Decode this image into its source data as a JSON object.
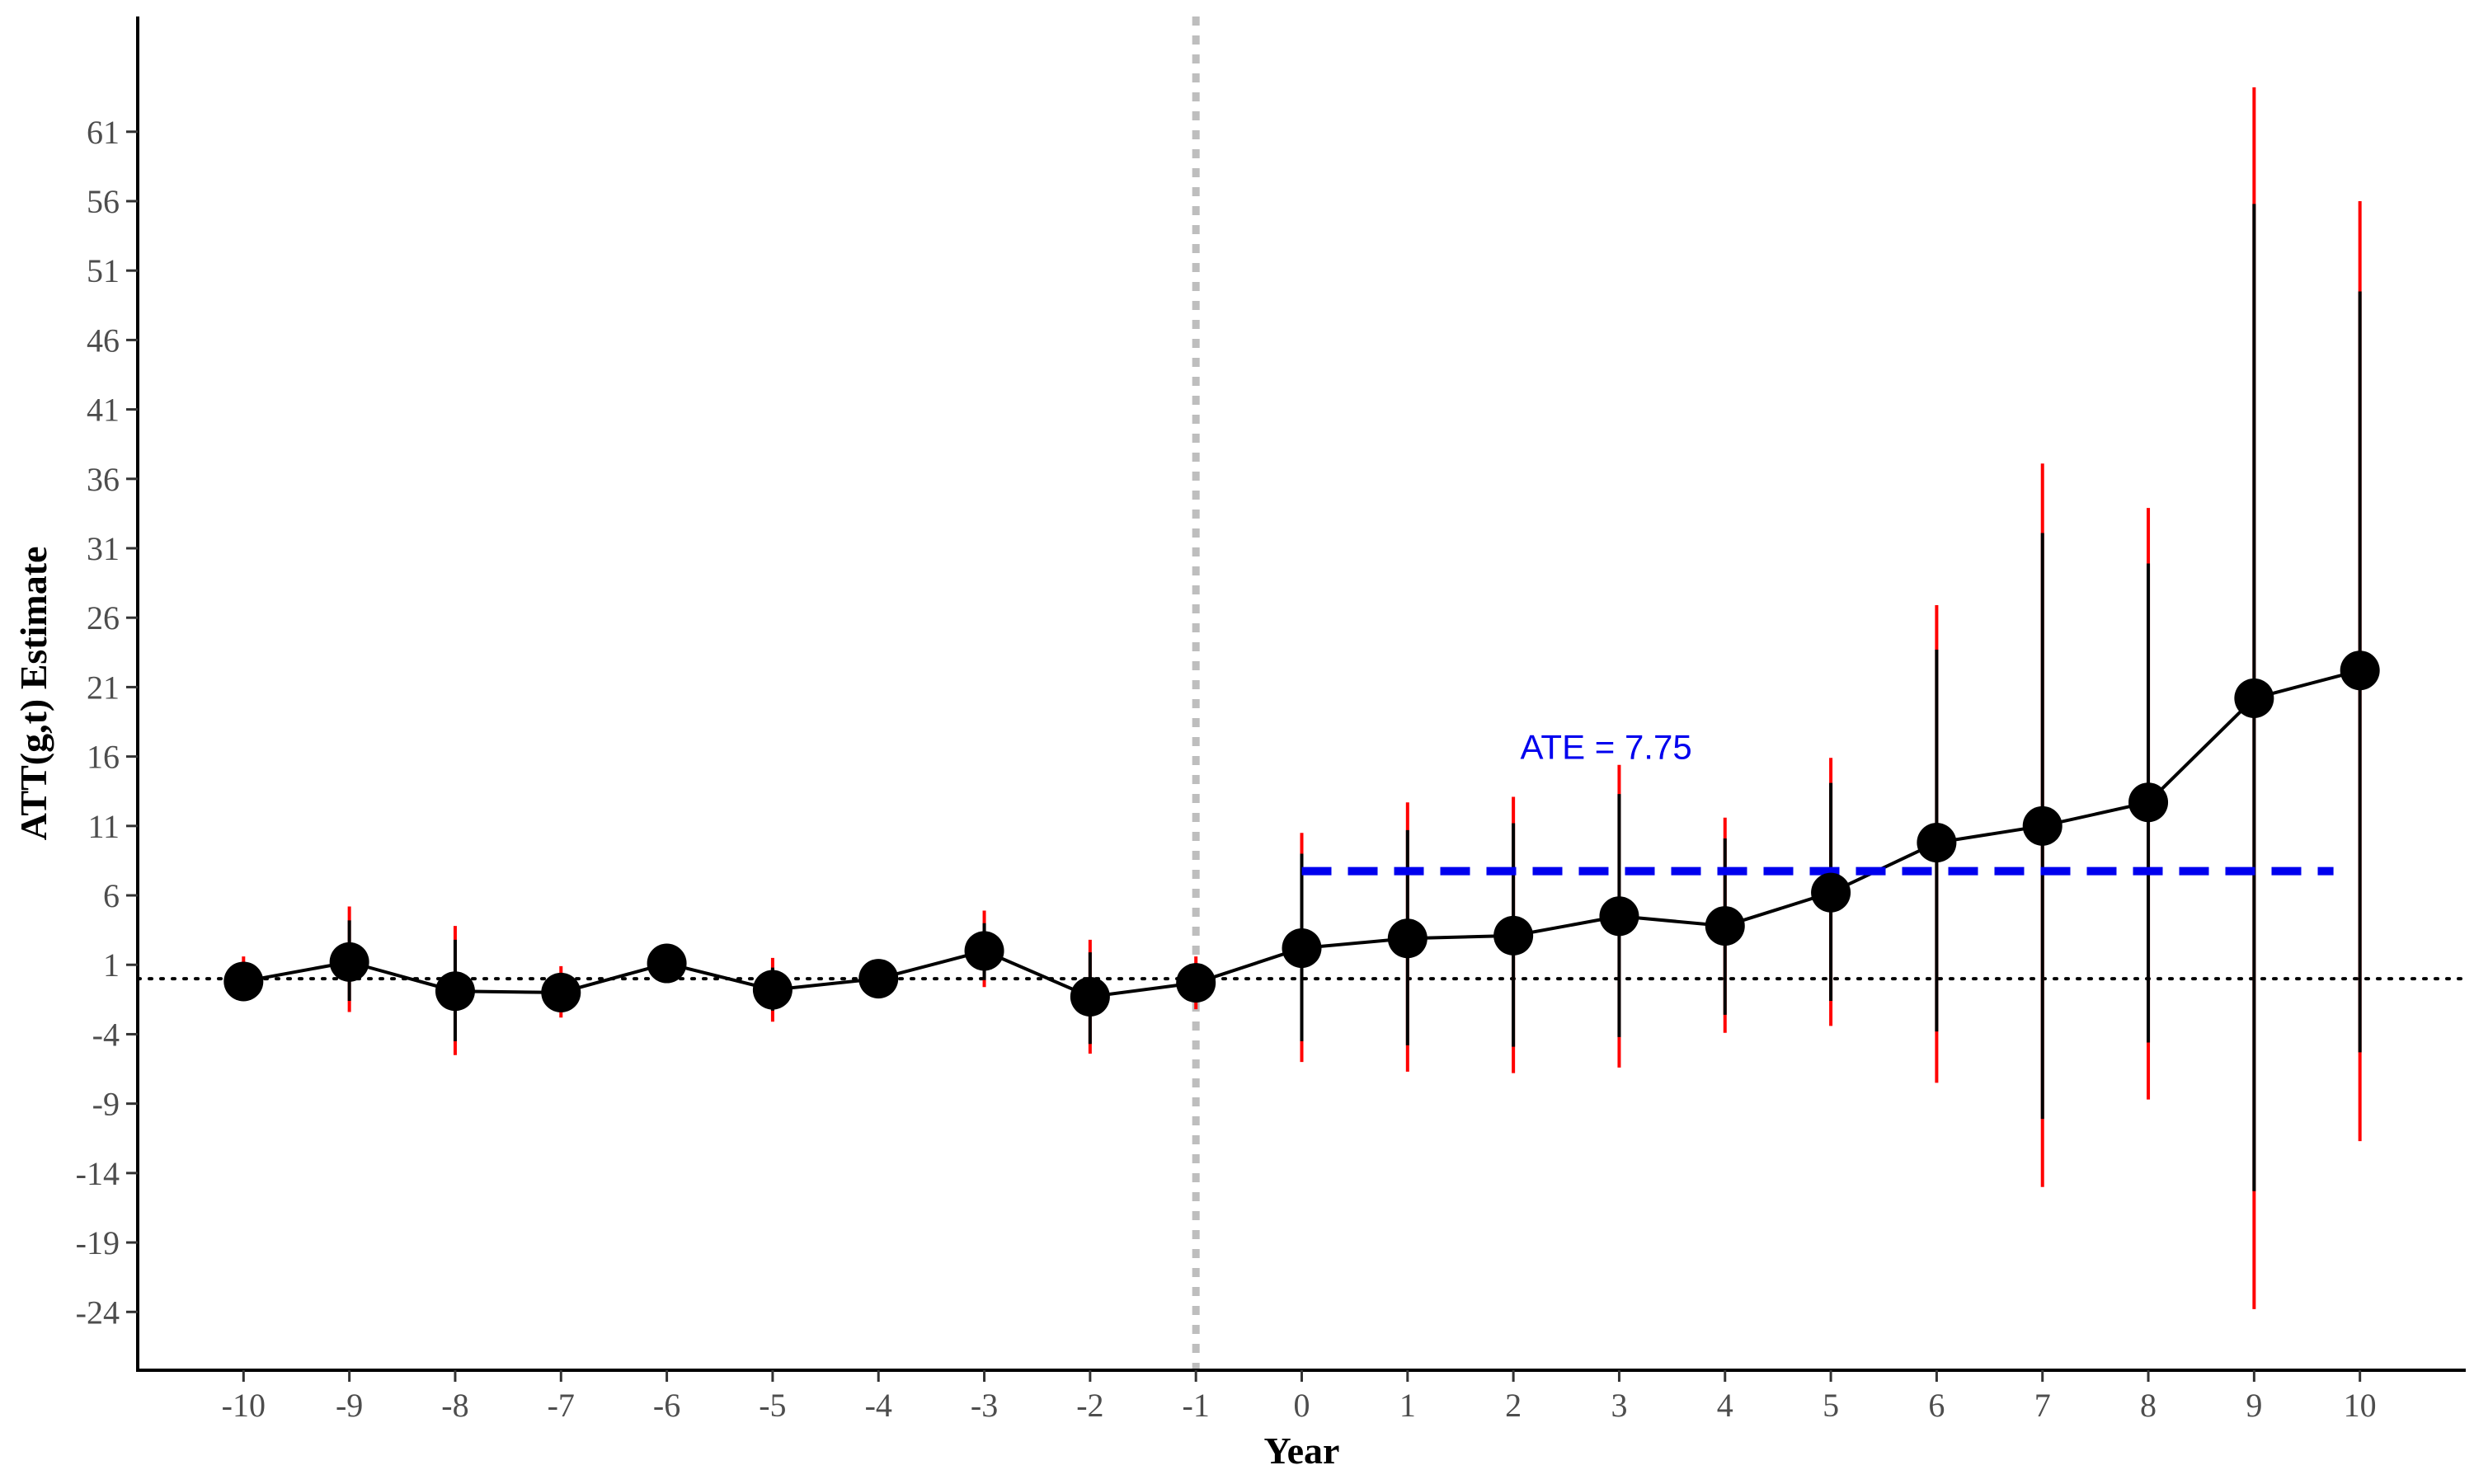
{
  "chart_data": {
    "type": "scatter",
    "xlabel": "Year",
    "ylabel": "ATT(g,t) Estimate",
    "x_ticks": [
      -10,
      -9,
      -8,
      -7,
      -6,
      -5,
      -4,
      -3,
      -2,
      -1,
      0,
      1,
      2,
      3,
      4,
      5,
      6,
      7,
      8,
      9,
      10
    ],
    "y_ticks": [
      -24,
      -19,
      -14,
      -9,
      -4,
      1,
      6,
      11,
      16,
      21,
      26,
      31,
      36,
      41,
      46,
      51,
      56,
      61
    ],
    "xlim": [
      -11,
      11
    ],
    "ylim": [
      -28.2,
      69.3
    ],
    "grid": false,
    "points": [
      {
        "x": -10,
        "y": -0.2,
        "ci_inner": [
          -1.0,
          0.8
        ],
        "ci_outer": [
          -1.6,
          1.6
        ]
      },
      {
        "x": -9,
        "y": 1.2,
        "ci_inner": [
          -1.6,
          4.2
        ],
        "ci_outer": [
          -2.4,
          5.2
        ]
      },
      {
        "x": -8,
        "y": -0.9,
        "ci_inner": [
          -4.5,
          2.8
        ],
        "ci_outer": [
          -5.5,
          3.8
        ]
      },
      {
        "x": -7,
        "y": -1.0,
        "ci_inner": [
          -2.2,
          0.4
        ],
        "ci_outer": [
          -2.8,
          0.9
        ]
      },
      {
        "x": -6,
        "y": 1.1,
        "ci_inner": [
          1.1,
          1.1
        ],
        "ci_outer": [
          1.1,
          1.1
        ]
      },
      {
        "x": -5,
        "y": -0.8,
        "ci_inner": [
          -2.3,
          0.8
        ],
        "ci_outer": [
          -3.1,
          1.5
        ]
      },
      {
        "x": -4,
        "y": 0.0,
        "ci_inner": [
          0.0,
          0.0
        ],
        "ci_outer": [
          0.0,
          0.0
        ]
      },
      {
        "x": -3,
        "y": 2.0,
        "ci_inner": [
          -0.1,
          4.0
        ],
        "ci_outer": [
          -0.6,
          4.9
        ]
      },
      {
        "x": -2,
        "y": -1.3,
        "ci_inner": [
          -4.7,
          1.9
        ],
        "ci_outer": [
          -5.4,
          2.8
        ]
      },
      {
        "x": -1,
        "y": -0.3,
        "ci_inner": [
          -1.4,
          0.9
        ],
        "ci_outer": [
          -2.2,
          1.6
        ]
      },
      {
        "x": 0,
        "y": 2.2,
        "ci_inner": [
          -4.5,
          9.0
        ],
        "ci_outer": [
          -6.0,
          10.5
        ]
      },
      {
        "x": 1,
        "y": 2.9,
        "ci_inner": [
          -4.8,
          10.7
        ],
        "ci_outer": [
          -6.7,
          12.7
        ]
      },
      {
        "x": 2,
        "y": 3.1,
        "ci_inner": [
          -4.9,
          11.2
        ],
        "ci_outer": [
          -6.8,
          13.1
        ]
      },
      {
        "x": 3,
        "y": 4.5,
        "ci_inner": [
          -4.2,
          13.3
        ],
        "ci_outer": [
          -6.4,
          15.4
        ]
      },
      {
        "x": 4,
        "y": 3.8,
        "ci_inner": [
          -2.6,
          10.1
        ],
        "ci_outer": [
          -3.9,
          11.6
        ]
      },
      {
        "x": 5,
        "y": 6.2,
        "ci_inner": [
          -1.6,
          14.1
        ],
        "ci_outer": [
          -3.4,
          15.9
        ]
      },
      {
        "x": 6,
        "y": 9.8,
        "ci_inner": [
          -3.8,
          23.7
        ],
        "ci_outer": [
          -7.5,
          26.9
        ]
      },
      {
        "x": 7,
        "y": 11.0,
        "ci_inner": [
          -10.1,
          32.1
        ],
        "ci_outer": [
          -15.0,
          37.1
        ]
      },
      {
        "x": 8,
        "y": 12.7,
        "ci_inner": [
          -4.6,
          29.9
        ],
        "ci_outer": [
          -8.7,
          33.9
        ]
      },
      {
        "x": 9,
        "y": 20.2,
        "ci_inner": [
          -15.3,
          55.8
        ],
        "ci_outer": [
          -23.8,
          64.2
        ]
      },
      {
        "x": 10,
        "y": 22.2,
        "ci_inner": [
          -5.3,
          49.5
        ],
        "ci_outer": [
          -11.7,
          56.0
        ]
      }
    ],
    "ate": {
      "label": "ATE = 7.75",
      "value": 7.75,
      "x_start": 0,
      "x_end": 9.75
    },
    "reference_lines": {
      "vertical_x": -1,
      "horizontal_y": 0
    },
    "colors": {
      "points": "#000000",
      "ci_outer": "#ff0000",
      "ci_inner": "#000000",
      "ate": "#0000ee",
      "vertical_ref": "#bebebe",
      "horizontal_ref": "#000000"
    }
  }
}
